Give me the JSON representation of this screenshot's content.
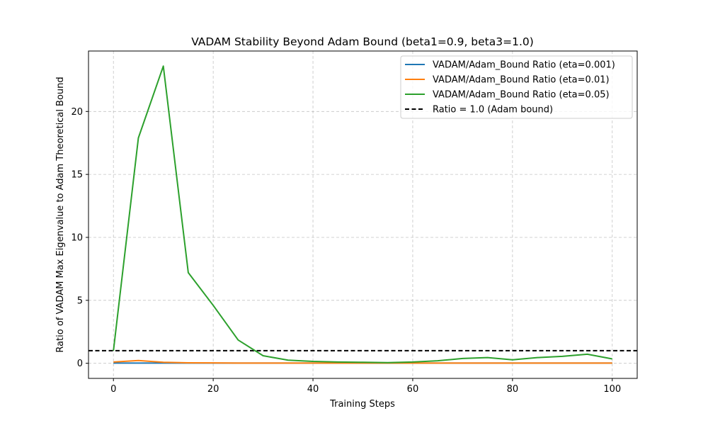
{
  "chart_data": {
    "type": "line",
    "title": "VADAM Stability Beyond Adam Bound (beta1=0.9, beta3=1.0)",
    "xlabel": "Training Steps",
    "ylabel": "Ratio of VADAM Max Eigenvalue to Adam Theoretical Bound",
    "xlim": [
      -5,
      105
    ],
    "ylim": [
      -1.2,
      24.8
    ],
    "xticks": [
      0,
      20,
      40,
      60,
      80,
      100
    ],
    "yticks": [
      0,
      5,
      10,
      15,
      20
    ],
    "grid": true,
    "legend_position": "top-right",
    "x": [
      0,
      5,
      10,
      15,
      20,
      25,
      30,
      35,
      40,
      45,
      50,
      55,
      60,
      65,
      70,
      75,
      80,
      85,
      90,
      95,
      100
    ],
    "series": [
      {
        "name": "VADAM/Adam_Bound Ratio (eta=0.001)",
        "color": "#1f77b4",
        "style": "solid",
        "values": [
          0.02,
          0.02,
          0.02,
          0.02,
          0.02,
          0.02,
          0.02,
          0.02,
          0.02,
          0.02,
          0.02,
          0.02,
          0.02,
          0.02,
          0.02,
          0.02,
          0.02,
          0.02,
          0.02,
          0.02,
          0.02
        ]
      },
      {
        "name": "VADAM/Adam_Bound Ratio (eta=0.01)",
        "color": "#ff7f0e",
        "style": "solid",
        "values": [
          0.1,
          0.22,
          0.08,
          0.04,
          0.03,
          0.02,
          0.02,
          0.02,
          0.02,
          0.02,
          0.02,
          0.02,
          0.02,
          0.02,
          0.02,
          0.02,
          0.02,
          0.02,
          0.02,
          0.02,
          0.02
        ]
      },
      {
        "name": "VADAM/Adam_Bound Ratio (eta=0.05)",
        "color": "#2ca02c",
        "style": "solid",
        "values": [
          1.0,
          17.9,
          23.6,
          7.2,
          4.6,
          1.85,
          0.6,
          0.25,
          0.15,
          0.1,
          0.08,
          0.05,
          0.1,
          0.2,
          0.38,
          0.45,
          0.28,
          0.45,
          0.55,
          0.72,
          0.35
        ]
      },
      {
        "name": "Ratio = 1.0 (Adam bound)",
        "color": "#000000",
        "style": "dashed",
        "hline": 1.0
      }
    ]
  }
}
